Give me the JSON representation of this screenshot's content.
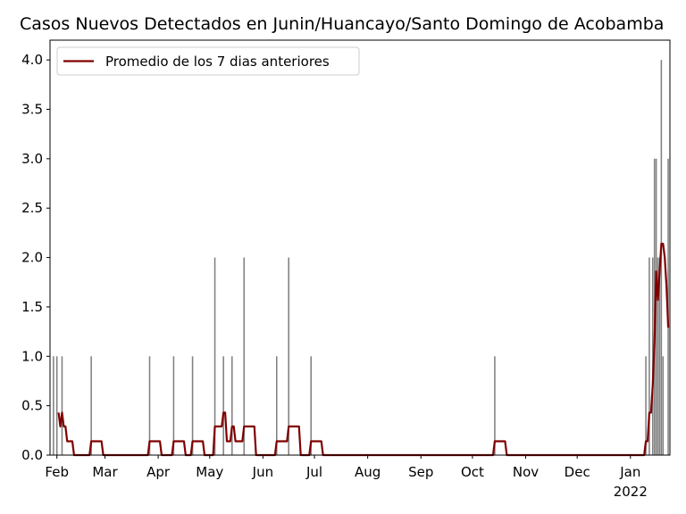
{
  "chart_data": {
    "type": "bar",
    "title": "Casos Nuevos Detectados en Junin/Huancayo/Santo Domingo de Acobamba",
    "xlabel": "",
    "ylabel": "",
    "xlim": [
      "2021-01-28",
      "2022-01-24"
    ],
    "ylim": [
      0,
      4.2
    ],
    "yticks": [
      0.0,
      0.5,
      1.0,
      1.5,
      2.0,
      2.5,
      3.0,
      3.5,
      4.0
    ],
    "ytick_labels": [
      "0.0",
      "0.5",
      "1.0",
      "1.5",
      "2.0",
      "2.5",
      "3.0",
      "3.5",
      "4.0"
    ],
    "xticks": [
      {
        "date": "2021-02-01",
        "label": "Feb"
      },
      {
        "date": "2021-03-01",
        "label": "Mar"
      },
      {
        "date": "2021-04-01",
        "label": "Apr"
      },
      {
        "date": "2021-05-01",
        "label": "May"
      },
      {
        "date": "2021-06-01",
        "label": "Jun"
      },
      {
        "date": "2021-07-01",
        "label": "Jul"
      },
      {
        "date": "2021-08-01",
        "label": "Aug"
      },
      {
        "date": "2021-09-01",
        "label": "Sep"
      },
      {
        "date": "2021-10-01",
        "label": "Oct"
      },
      {
        "date": "2021-11-01",
        "label": "Nov"
      },
      {
        "date": "2021-12-01",
        "label": "Dec"
      },
      {
        "date": "2022-01-01",
        "label": "Jan",
        "sublabel": "2022"
      }
    ],
    "legend": {
      "position": "top-left",
      "entry": "Promedio de los 7 dias anteriores"
    },
    "colors": {
      "bars": "#808080",
      "average_line": "#800000"
    },
    "grid": false,
    "series": [
      {
        "kind": "bar",
        "values": [
          {
            "x": "2021-01-30",
            "y": 1
          },
          {
            "x": "2021-02-01",
            "y": 1
          },
          {
            "x": "2021-02-04",
            "y": 1
          },
          {
            "x": "2021-02-21",
            "y": 1
          },
          {
            "x": "2021-03-27",
            "y": 1
          },
          {
            "x": "2021-04-10",
            "y": 1
          },
          {
            "x": "2021-04-21",
            "y": 1
          },
          {
            "x": "2021-05-04",
            "y": 2
          },
          {
            "x": "2021-05-09",
            "y": 1
          },
          {
            "x": "2021-05-14",
            "y": 1
          },
          {
            "x": "2021-05-21",
            "y": 2
          },
          {
            "x": "2021-06-09",
            "y": 1
          },
          {
            "x": "2021-06-16",
            "y": 2
          },
          {
            "x": "2021-06-29",
            "y": 1
          },
          {
            "x": "2021-10-14",
            "y": 1
          },
          {
            "x": "2022-01-10",
            "y": 1
          },
          {
            "x": "2022-01-12",
            "y": 2
          },
          {
            "x": "2022-01-14",
            "y": 2
          },
          {
            "x": "2022-01-15",
            "y": 3
          },
          {
            "x": "2022-01-16",
            "y": 3
          },
          {
            "x": "2022-01-17",
            "y": 2
          },
          {
            "x": "2022-01-18",
            "y": 2
          },
          {
            "x": "2022-01-19",
            "y": 4
          },
          {
            "x": "2022-01-20",
            "y": 1
          },
          {
            "x": "2022-01-23",
            "y": 3
          }
        ]
      },
      {
        "kind": "line",
        "name": "Promedio de los 7 dias anteriores",
        "values": [
          {
            "x": "2021-02-02",
            "y": 0.43
          },
          {
            "x": "2021-02-03",
            "y": 0.29
          },
          {
            "x": "2021-02-04",
            "y": 0.43
          },
          {
            "x": "2021-02-05",
            "y": 0.29
          },
          {
            "x": "2021-02-06",
            "y": 0.29
          },
          {
            "x": "2021-02-07",
            "y": 0.14
          },
          {
            "x": "2021-02-10",
            "y": 0.14
          },
          {
            "x": "2021-02-11",
            "y": 0.0
          },
          {
            "x": "2021-02-20",
            "y": 0.0
          },
          {
            "x": "2021-02-21",
            "y": 0.14
          },
          {
            "x": "2021-02-27",
            "y": 0.14
          },
          {
            "x": "2021-02-28",
            "y": 0.0
          },
          {
            "x": "2021-03-26",
            "y": 0.0
          },
          {
            "x": "2021-03-27",
            "y": 0.14
          },
          {
            "x": "2021-04-02",
            "y": 0.14
          },
          {
            "x": "2021-04-03",
            "y": 0.0
          },
          {
            "x": "2021-04-09",
            "y": 0.0
          },
          {
            "x": "2021-04-10",
            "y": 0.14
          },
          {
            "x": "2021-04-16",
            "y": 0.14
          },
          {
            "x": "2021-04-17",
            "y": 0.0
          },
          {
            "x": "2021-04-20",
            "y": 0.0
          },
          {
            "x": "2021-04-21",
            "y": 0.14
          },
          {
            "x": "2021-04-27",
            "y": 0.14
          },
          {
            "x": "2021-04-28",
            "y": 0.0
          },
          {
            "x": "2021-05-03",
            "y": 0.0
          },
          {
            "x": "2021-05-04",
            "y": 0.29
          },
          {
            "x": "2021-05-08",
            "y": 0.29
          },
          {
            "x": "2021-05-09",
            "y": 0.43
          },
          {
            "x": "2021-05-10",
            "y": 0.43
          },
          {
            "x": "2021-05-11",
            "y": 0.14
          },
          {
            "x": "2021-05-13",
            "y": 0.14
          },
          {
            "x": "2021-05-14",
            "y": 0.29
          },
          {
            "x": "2021-05-15",
            "y": 0.29
          },
          {
            "x": "2021-05-16",
            "y": 0.14
          },
          {
            "x": "2021-05-20",
            "y": 0.14
          },
          {
            "x": "2021-05-21",
            "y": 0.29
          },
          {
            "x": "2021-05-27",
            "y": 0.29
          },
          {
            "x": "2021-05-28",
            "y": 0.0
          },
          {
            "x": "2021-06-08",
            "y": 0.0
          },
          {
            "x": "2021-06-09",
            "y": 0.14
          },
          {
            "x": "2021-06-15",
            "y": 0.14
          },
          {
            "x": "2021-06-16",
            "y": 0.29
          },
          {
            "x": "2021-06-22",
            "y": 0.29
          },
          {
            "x": "2021-06-23",
            "y": 0.0
          },
          {
            "x": "2021-06-28",
            "y": 0.0
          },
          {
            "x": "2021-06-29",
            "y": 0.14
          },
          {
            "x": "2021-07-05",
            "y": 0.14
          },
          {
            "x": "2021-07-06",
            "y": 0.0
          },
          {
            "x": "2021-10-13",
            "y": 0.0
          },
          {
            "x": "2021-10-14",
            "y": 0.14
          },
          {
            "x": "2021-10-20",
            "y": 0.14
          },
          {
            "x": "2021-10-21",
            "y": 0.0
          },
          {
            "x": "2022-01-09",
            "y": 0.0
          },
          {
            "x": "2022-01-10",
            "y": 0.14
          },
          {
            "x": "2022-01-11",
            "y": 0.14
          },
          {
            "x": "2022-01-12",
            "y": 0.43
          },
          {
            "x": "2022-01-13",
            "y": 0.43
          },
          {
            "x": "2022-01-14",
            "y": 0.71
          },
          {
            "x": "2022-01-15",
            "y": 1.14
          },
          {
            "x": "2022-01-16",
            "y": 1.86
          },
          {
            "x": "2022-01-17",
            "y": 1.57
          },
          {
            "x": "2022-01-18",
            "y": 1.86
          },
          {
            "x": "2022-01-19",
            "y": 2.14
          },
          {
            "x": "2022-01-20",
            "y": 2.14
          },
          {
            "x": "2022-01-21",
            "y": 2.0
          },
          {
            "x": "2022-01-22",
            "y": 1.71
          },
          {
            "x": "2022-01-23",
            "y": 1.29
          }
        ]
      }
    ]
  }
}
